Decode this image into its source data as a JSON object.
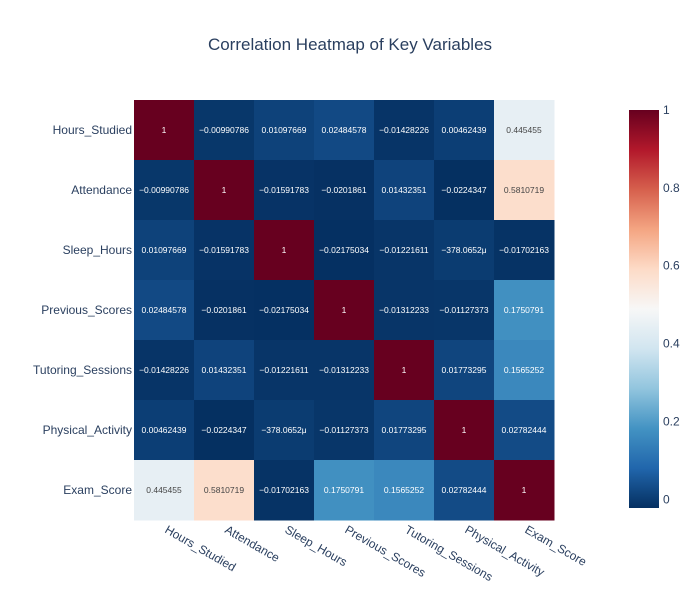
{
  "chart_data": {
    "type": "heatmap",
    "title": "Correlation Heatmap of Key Variables",
    "x_categories": [
      "Hours_Studied",
      "Attendance",
      "Sleep_Hours",
      "Previous_Scores",
      "Tutoring_Sessions",
      "Physical_Activity",
      "Exam_Score"
    ],
    "y_categories": [
      "Hours_Studied",
      "Attendance",
      "Sleep_Hours",
      "Previous_Scores",
      "Tutoring_Sessions",
      "Physical_Activity",
      "Exam_Score"
    ],
    "values": [
      [
        1,
        -0.00990786,
        0.01097669,
        0.02484578,
        -0.01428226,
        0.00462439,
        0.445455
      ],
      [
        -0.00990786,
        1,
        -0.01591783,
        -0.0201861,
        0.01432351,
        -0.0224347,
        0.5810719
      ],
      [
        0.01097669,
        -0.01591783,
        1,
        -0.02175034,
        -0.01221611,
        -0.000378065,
        -0.01702163
      ],
      [
        0.02484578,
        -0.0201861,
        -0.02175034,
        1,
        -0.01312233,
        -0.01127373,
        0.1750791
      ],
      [
        -0.01428226,
        0.01432351,
        -0.01221611,
        -0.01312233,
        1,
        0.01773295,
        0.1565252
      ],
      [
        0.00462439,
        -0.0224347,
        -0.000378065,
        -0.01127373,
        0.01773295,
        1,
        0.02782444
      ],
      [
        0.445455,
        0.5810719,
        -0.01702163,
        0.1750791,
        0.1565252,
        0.02782444,
        1
      ]
    ],
    "text": [
      [
        "1",
        "−0.00990786",
        "0.01097669",
        "0.02484578",
        "−0.01428226",
        "0.00462439",
        "0.445455"
      ],
      [
        "−0.00990786",
        "1",
        "−0.01591783",
        "−0.0201861",
        "0.01432351",
        "−0.0224347",
        "0.5810719"
      ],
      [
        "0.01097669",
        "−0.01591783",
        "1",
        "−0.02175034",
        "−0.01221611",
        "−378.0652μ",
        "−0.01702163"
      ],
      [
        "0.02484578",
        "−0.0201861",
        "−0.02175034",
        "1",
        "−0.01312233",
        "−0.01127373",
        "0.1750791"
      ],
      [
        "−0.01428226",
        "0.01432351",
        "−0.01221611",
        "−0.01312233",
        "1",
        "0.01773295",
        "0.1565252"
      ],
      [
        "0.00462439",
        "−0.0224347",
        "−378.0652μ",
        "−0.01127373",
        "0.01773295",
        "1",
        "0.02782444"
      ],
      [
        "0.445455",
        "0.5810719",
        "−0.01702163",
        "0.1750791",
        "0.1565252",
        "0.02782444",
        "1"
      ]
    ],
    "colorscale": "RdBu_r",
    "zrange": [
      -0.0224347,
      1
    ],
    "colorbar_ticks": [
      "0",
      "0.2",
      "0.4",
      "0.6",
      "0.8",
      "1"
    ],
    "colorbar_tick_values": [
      0,
      0.2,
      0.4,
      0.6,
      0.8,
      1
    ],
    "legend": "colorbar-right",
    "xlabel": "",
    "ylabel": ""
  }
}
